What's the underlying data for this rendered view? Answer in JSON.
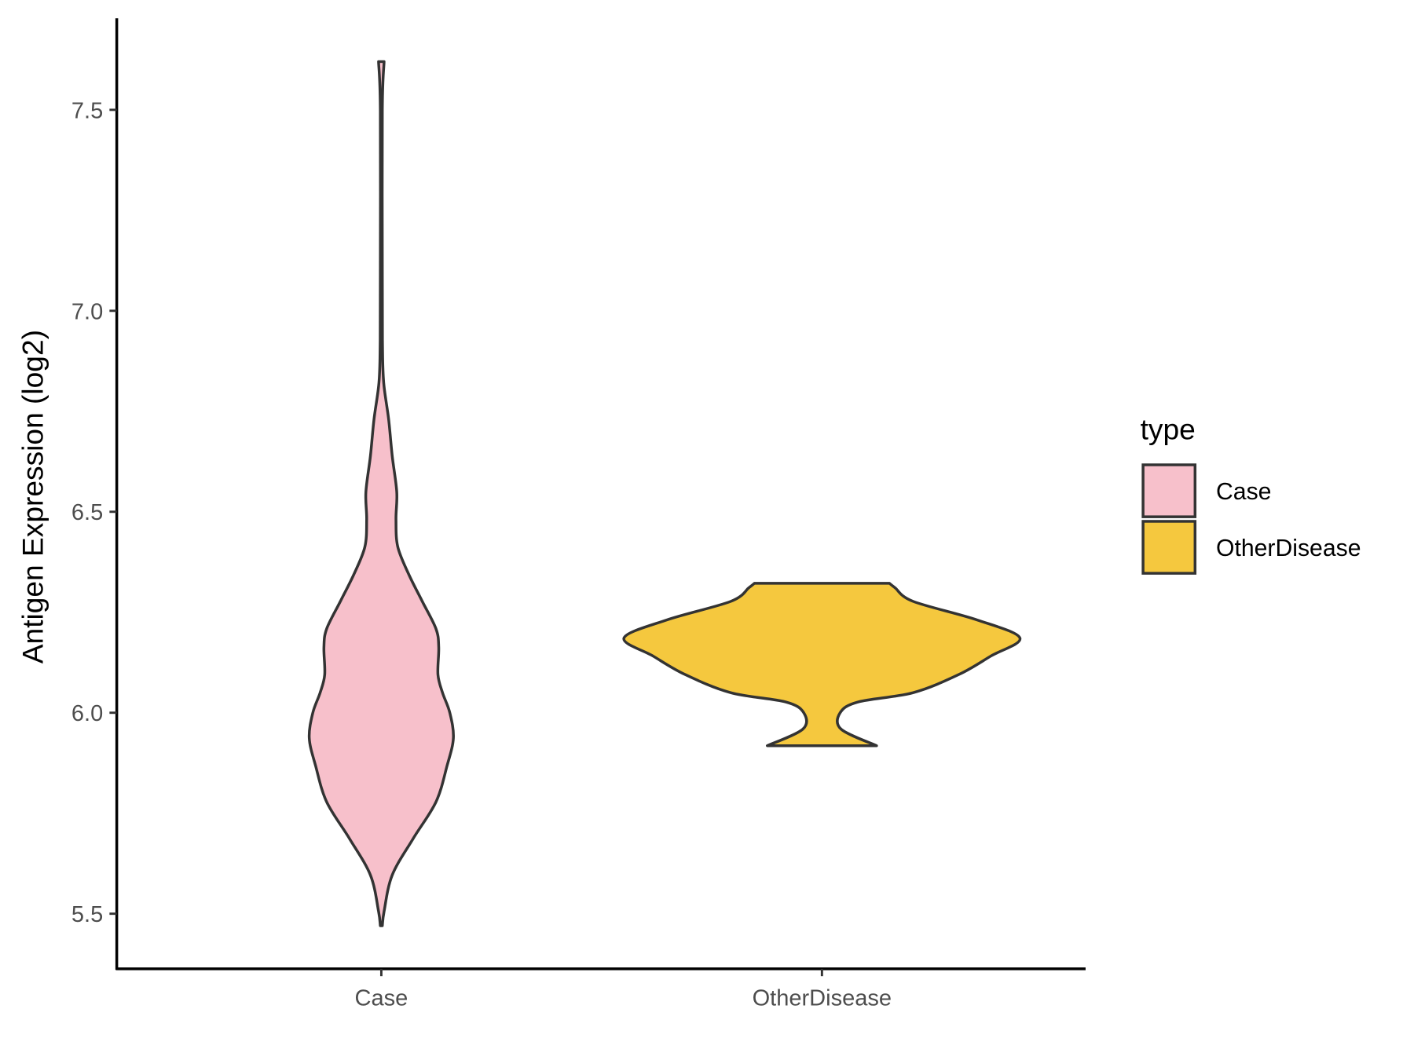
{
  "chart_data": {
    "type": "violin",
    "title": "",
    "xlabel": "",
    "ylabel": "Antigen Expression (log2)",
    "ylim": [
      5.365,
      7.73
    ],
    "yticks": [
      "5.5",
      "6.0",
      "6.5",
      "7.0",
      "7.5"
    ],
    "ytick_values": [
      5.5,
      6.0,
      6.5,
      7.0,
      7.5
    ],
    "categories": [
      "Case",
      "OtherDisease"
    ],
    "grid": false,
    "legend": {
      "title": "type",
      "position": "right",
      "entries": [
        "Case",
        "OtherDisease"
      ]
    },
    "series": [
      {
        "name": "Case",
        "color": "#f7c0cb",
        "range": [
          5.47,
          7.62
        ],
        "profile": [
          [
            5.47,
            0.005
          ],
          [
            5.506,
            0.014
          ],
          [
            5.596,
            0.055
          ],
          [
            5.687,
            0.161
          ],
          [
            5.778,
            0.276
          ],
          [
            5.868,
            0.332
          ],
          [
            5.937,
            0.364
          ],
          [
            6.0,
            0.346
          ],
          [
            6.05,
            0.309
          ],
          [
            6.095,
            0.286
          ],
          [
            6.163,
            0.29
          ],
          [
            6.209,
            0.276
          ],
          [
            6.277,
            0.207
          ],
          [
            6.345,
            0.138
          ],
          [
            6.413,
            0.083
          ],
          [
            6.481,
            0.074
          ],
          [
            6.549,
            0.078
          ],
          [
            6.639,
            0.055
          ],
          [
            6.73,
            0.037
          ],
          [
            6.821,
            0.012
          ],
          [
            6.912,
            0.006
          ],
          [
            7.093,
            0.005
          ],
          [
            7.5,
            0.005
          ],
          [
            7.62,
            0.014
          ]
        ]
      },
      {
        "name": "OtherDisease",
        "color": "#f5c83e",
        "range": [
          5.918,
          6.322
        ],
        "profile": [
          [
            5.918,
            0.276
          ],
          [
            5.959,
            0.097
          ],
          [
            6.0,
            0.092
          ],
          [
            6.027,
            0.184
          ],
          [
            6.05,
            0.461
          ],
          [
            6.095,
            0.691
          ],
          [
            6.141,
            0.853
          ],
          [
            6.186,
            1.0
          ],
          [
            6.231,
            0.783
          ],
          [
            6.277,
            0.461
          ],
          [
            6.311,
            0.369
          ],
          [
            6.322,
            0.341
          ]
        ]
      }
    ],
    "outline_color": "#333333"
  }
}
